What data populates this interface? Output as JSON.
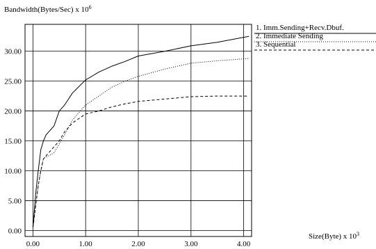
{
  "chart_data": {
    "type": "line",
    "ylabel": "Bandwidth(Bytes/Sec) x 10",
    "ylabel_exponent": "6",
    "xlabel": "Size(Byte) x 10",
    "xlabel_exponent": "3",
    "xlim": [
      -0.15,
      4.15
    ],
    "ylim": [
      -1.0,
      34.5
    ],
    "x_ticks": [
      0,
      1,
      2,
      3,
      4
    ],
    "x_tick_labels": [
      "0.00",
      "1.00",
      "2.00",
      "3.00",
      "4.00"
    ],
    "y_ticks": [
      0,
      5,
      10,
      15,
      20,
      25,
      30
    ],
    "y_tick_labels": [
      "0.00",
      "5.00",
      "10.00",
      "15.00",
      "20.00",
      "25.00",
      "30.00"
    ],
    "grid": true,
    "legend_position": "right",
    "series": [
      {
        "name": "1. Imm.Sending+Recv.Dbuf.",
        "style": "solid",
        "x": [
          0.0,
          0.05,
          0.1,
          0.15,
          0.2,
          0.25,
          0.3,
          0.4,
          0.5,
          0.6,
          0.75,
          1.0,
          1.25,
          1.5,
          1.75,
          2.0,
          2.5,
          3.0,
          3.5,
          4.1
        ],
        "y": [
          0.5,
          6.0,
          10.0,
          13.5,
          15.0,
          16.0,
          16.5,
          17.5,
          20.0,
          21.0,
          23.0,
          25.2,
          26.5,
          27.5,
          28.3,
          29.2,
          30.0,
          30.9,
          31.5,
          32.5
        ]
      },
      {
        "name": "2. Immediate Sending",
        "style": "dotted",
        "x": [
          0.0,
          0.05,
          0.1,
          0.15,
          0.2,
          0.25,
          0.3,
          0.4,
          0.5,
          0.6,
          0.75,
          1.0,
          1.25,
          1.5,
          1.75,
          2.0,
          2.5,
          3.0,
          3.5,
          4.1
        ],
        "y": [
          0.5,
          4.0,
          7.5,
          10.0,
          12.0,
          12.3,
          12.5,
          13.0,
          14.5,
          16.0,
          18.5,
          21.0,
          22.5,
          24.0,
          25.0,
          25.8,
          27.0,
          28.0,
          28.4,
          28.8
        ]
      },
      {
        "name": "3. Sequential",
        "style": "dashed",
        "x": [
          0.0,
          0.05,
          0.1,
          0.15,
          0.2,
          0.25,
          0.3,
          0.4,
          0.5,
          0.6,
          0.75,
          1.0,
          1.25,
          1.5,
          1.75,
          2.0,
          2.5,
          3.0,
          3.5,
          4.1
        ],
        "y": [
          0.5,
          4.0,
          7.5,
          10.0,
          12.0,
          12.5,
          13.0,
          14.0,
          15.0,
          16.5,
          18.0,
          19.5,
          20.0,
          20.7,
          21.2,
          21.6,
          22.0,
          22.4,
          22.5,
          22.5
        ]
      }
    ]
  }
}
